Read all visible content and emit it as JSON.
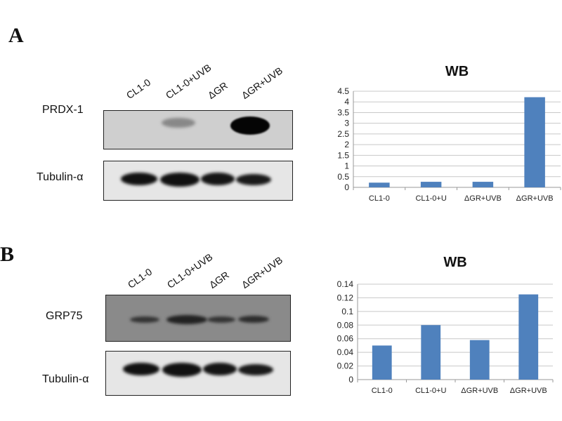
{
  "panels": [
    {
      "letter": "A",
      "lanes": [
        "CL1-0",
        "CL1-0+UVB",
        "ΔGR",
        "ΔGR+UVB"
      ],
      "target": "PRDX-1",
      "loading": "Tubulin-α"
    },
    {
      "letter": "B",
      "lanes": [
        "CL1-0",
        "CL1-0+UVB",
        "ΔGR",
        "ΔGR+UVB"
      ],
      "target": "GRP75",
      "loading": "Tubulin-α"
    }
  ],
  "chart_data": [
    {
      "type": "bar",
      "title": "WB",
      "categories": [
        "CL1-0",
        "CL1-0+U",
        "ΔGR+UVB",
        "ΔGR+UVB"
      ],
      "values": [
        0.22,
        0.26,
        0.26,
        4.22
      ],
      "ylim": [
        0,
        4.5
      ],
      "yticks": [
        "0",
        "0.5",
        "1",
        "1.5",
        "2",
        "2.5",
        "3",
        "3.5",
        "4",
        "4.5"
      ],
      "grid": true,
      "color": "#4f81bd"
    },
    {
      "type": "bar",
      "title": "WB",
      "categories": [
        "CL1-0",
        "CL1-0+U",
        "ΔGR+UVB",
        "ΔGR+UVB"
      ],
      "values": [
        0.05,
        0.08,
        0.058,
        0.125
      ],
      "ylim": [
        0,
        0.14
      ],
      "yticks": [
        "0",
        "0.02",
        "0.04",
        "0.06",
        "0.08",
        "0.1",
        "0.12",
        "0.14"
      ],
      "grid": true,
      "color": "#4f81bd"
    }
  ]
}
